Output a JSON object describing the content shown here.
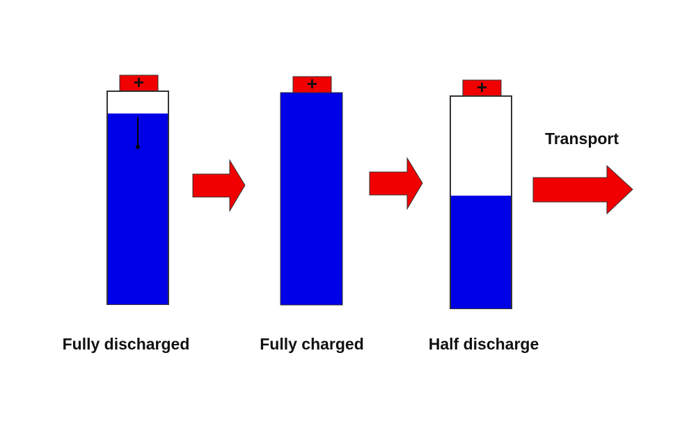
{
  "batteries": [
    {
      "terminal": "+",
      "label": "Fully discharged"
    },
    {
      "terminal": "+",
      "label": "Fully charged"
    },
    {
      "terminal": "+",
      "label": "Half discharge"
    }
  ],
  "transport_label": "Transport"
}
